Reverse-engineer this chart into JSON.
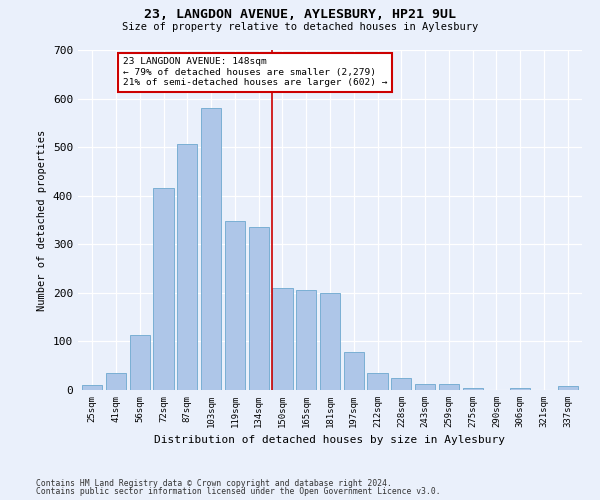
{
  "title": "23, LANGDON AVENUE, AYLESBURY, HP21 9UL",
  "subtitle": "Size of property relative to detached houses in Aylesbury",
  "xlabel": "Distribution of detached houses by size in Aylesbury",
  "ylabel": "Number of detached properties",
  "categories": [
    "25sqm",
    "41sqm",
    "56sqm",
    "72sqm",
    "87sqm",
    "103sqm",
    "119sqm",
    "134sqm",
    "150sqm",
    "165sqm",
    "181sqm",
    "197sqm",
    "212sqm",
    "228sqm",
    "243sqm",
    "259sqm",
    "275sqm",
    "290sqm",
    "306sqm",
    "321sqm",
    "337sqm"
  ],
  "values": [
    10,
    35,
    113,
    415,
    507,
    580,
    348,
    335,
    210,
    205,
    200,
    78,
    35,
    25,
    13,
    13,
    5,
    0,
    5,
    0,
    8
  ],
  "bar_color": "#aec6e8",
  "bar_edge_color": "#7aafd4",
  "vline_x_idx": 8,
  "vline_color": "#cc0000",
  "annotation_text": "23 LANGDON AVENUE: 148sqm\n← 79% of detached houses are smaller (2,279)\n21% of semi-detached houses are larger (602) →",
  "annotation_box_color": "#cc0000",
  "annotation_bg": "#ffffff",
  "ylim": [
    0,
    700
  ],
  "yticks": [
    0,
    100,
    200,
    300,
    400,
    500,
    600,
    700
  ],
  "background_color": "#eaf0fb",
  "grid_color": "#ffffff",
  "footnote1": "Contains HM Land Registry data © Crown copyright and database right 2024.",
  "footnote2": "Contains public sector information licensed under the Open Government Licence v3.0."
}
